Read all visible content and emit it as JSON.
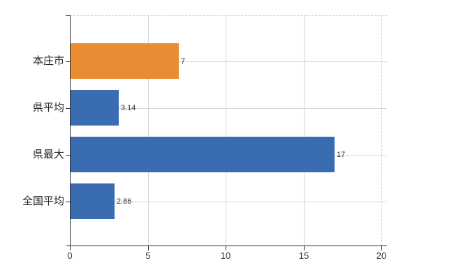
{
  "chart_data": {
    "type": "bar",
    "orientation": "horizontal",
    "title": "",
    "xlabel": "",
    "ylabel": "",
    "categories": [
      "本庄市",
      "県平均",
      "県最大",
      "全国平均"
    ],
    "values": [
      7,
      3.14,
      17,
      2.86
    ],
    "value_labels": [
      "7",
      "3.14",
      "17",
      "2.86"
    ],
    "bar_colors": [
      "#E98C34",
      "#3A6CB2",
      "#3A6CB2",
      "#3A6CB2"
    ],
    "xlim": [
      0,
      20
    ],
    "x_ticks": [
      0,
      5,
      10,
      15,
      20
    ],
    "x_tick_labels": [
      "0",
      "5",
      "10",
      "15",
      "20"
    ],
    "grid": true,
    "legend": false,
    "colors": {
      "axis": "#2e2e2e",
      "grid": "#d4d8d0",
      "border_dashed": "#c8ccc8",
      "category_text": "#262626",
      "value_text": "#333333",
      "tick_text": "#333333",
      "background": "#ffffff"
    }
  }
}
